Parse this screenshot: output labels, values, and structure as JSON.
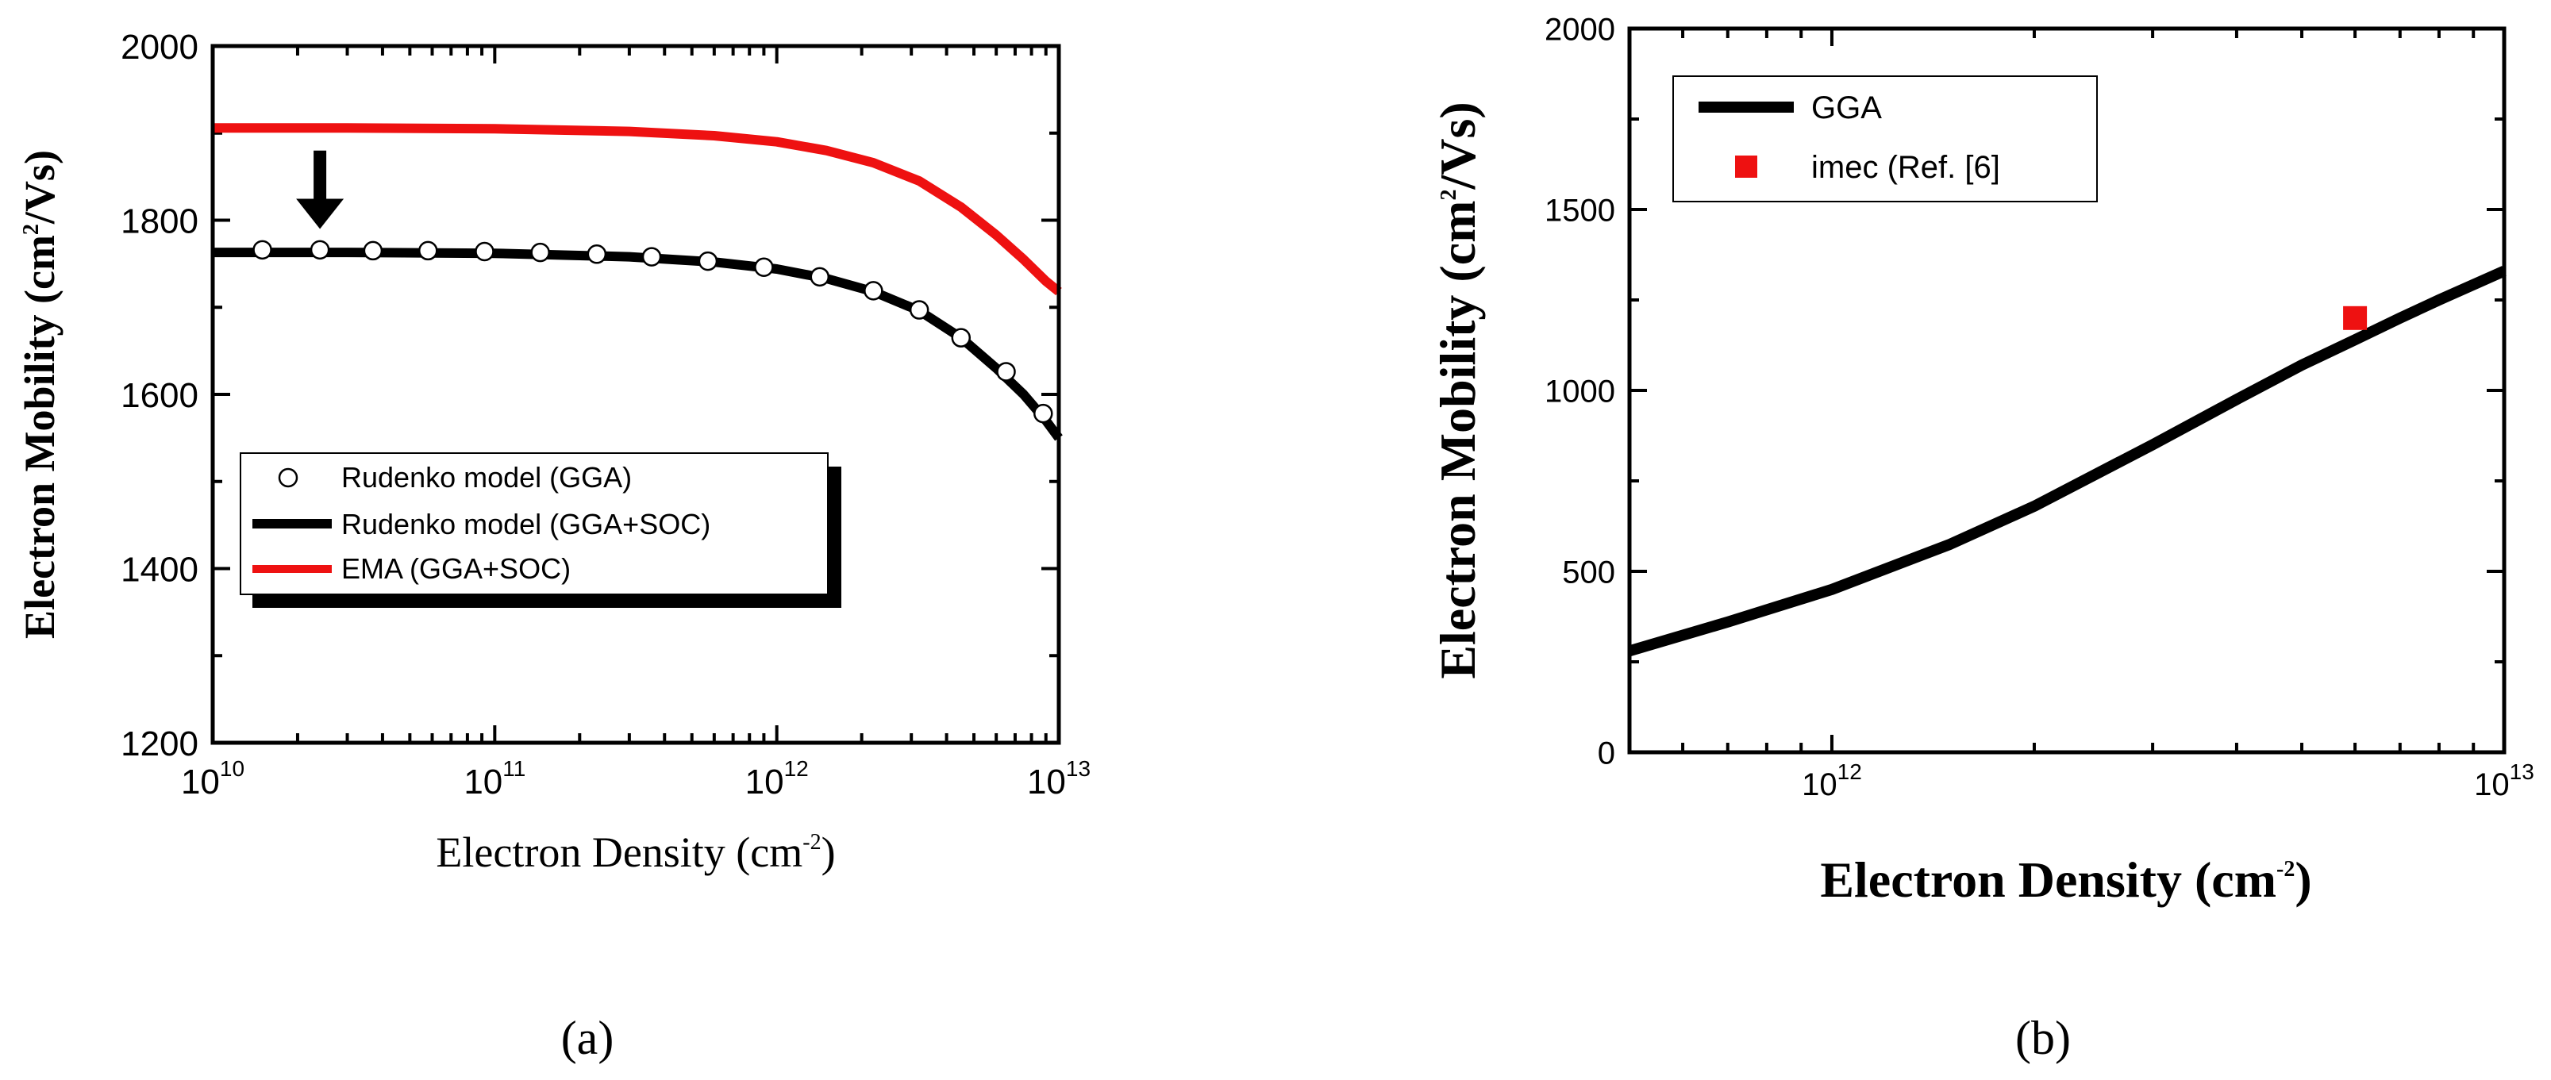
{
  "chart_data": [
    {
      "type": "line",
      "panel_label": "(a)",
      "x_scale": "log",
      "xlim": [
        10000000000.0,
        10000000000000.0
      ],
      "ylim": [
        1200,
        2000
      ],
      "xlabel": "Electron Density (cm",
      "xlabel_sup": "-2",
      "xlabel_end": ")",
      "ylabel": "Electron Mobility (cm",
      "ylabel_sup": "2",
      "ylabel_end": "/Vs)",
      "x_ticks": [
        {
          "base": "10",
          "exp": "10"
        },
        {
          "base": "10",
          "exp": "11"
        },
        {
          "base": "10",
          "exp": "12"
        },
        {
          "base": "10",
          "exp": "13"
        }
      ],
      "y_ticks": [
        "1200",
        "1400",
        "1600",
        "1800",
        "2000"
      ],
      "legend_position": "center-left",
      "series": [
        {
          "name": "Rudenko model (GGA)",
          "style": "open-circle",
          "color": "#000000",
          "x": [
            15000000000.0,
            24000000000.0,
            37000000000.0,
            58000000000.0,
            92000000000.0,
            145000000000.0,
            230000000000.0,
            360000000000.0,
            570000000000.0,
            900000000000.0,
            1420000000000.0,
            2200000000000.0,
            3200000000000.0,
            4500000000000.0,
            6500000000000.0,
            8800000000000.0
          ],
          "values": [
            1766,
            1766,
            1765,
            1765,
            1764,
            1763,
            1761,
            1758,
            1753,
            1746,
            1735,
            1719,
            1697,
            1665,
            1626,
            1578
          ]
        },
        {
          "name": "Rudenko model (GGA+SOC)",
          "style": "line",
          "color": "#000000",
          "x": [
            10000000000.0,
            30000000000.0,
            100000000000.0,
            300000000000.0,
            600000000000.0,
            1000000000000.0,
            1500000000000.0,
            2200000000000.0,
            3200000000000.0,
            4500000000000.0,
            6000000000000.0,
            7500000000000.0,
            9000000000000.0,
            10000000000000.0
          ],
          "values": [
            1763,
            1763,
            1762,
            1758,
            1752,
            1744,
            1733,
            1718,
            1696,
            1665,
            1630,
            1600,
            1570,
            1550
          ]
        },
        {
          "name": "EMA (GGA+SOC)",
          "style": "line",
          "color": "#ee1111",
          "x": [
            10000000000.0,
            30000000000.0,
            100000000000.0,
            300000000000.0,
            600000000000.0,
            1000000000000.0,
            1500000000000.0,
            2200000000000.0,
            3200000000000.0,
            4500000000000.0,
            6000000000000.0,
            7500000000000.0,
            9000000000000.0,
            10000000000000.0
          ],
          "values": [
            1906,
            1906,
            1905,
            1902,
            1897,
            1890,
            1880,
            1866,
            1845,
            1815,
            1783,
            1755,
            1730,
            1718
          ]
        }
      ],
      "annotations": [
        {
          "type": "arrow-down",
          "x": 24000000000.0,
          "y_from": 1880,
          "y_to": 1790
        }
      ]
    },
    {
      "type": "line",
      "panel_label": "(b)",
      "x_scale": "log",
      "xlim": [
        500000000000.0,
        10000000000000.0
      ],
      "ylim": [
        0,
        2000
      ],
      "xlabel": "Electron Density (cm",
      "xlabel_sup": "-2",
      "xlabel_end": ")",
      "ylabel": "Electron Mobility (cm",
      "ylabel_sup": "2",
      "ylabel_end": "/Vs)",
      "x_ticks": [
        {
          "base": "10",
          "exp": "12"
        },
        {
          "base": "10",
          "exp": "13"
        }
      ],
      "y_ticks": [
        "0",
        "500",
        "1000",
        "1500",
        "2000"
      ],
      "legend_position": "top-left",
      "series": [
        {
          "name": "GGA",
          "style": "line",
          "color": "#000000",
          "x": [
            500000000000.0,
            700000000000.0,
            1000000000000.0,
            1500000000000.0,
            2000000000000.0,
            3000000000000.0,
            4000000000000.0,
            5000000000000.0,
            6000000000000.0,
            7000000000000.0,
            8000000000000.0,
            10000000000000.0
          ],
          "values": [
            280,
            360,
            450,
            575,
            680,
            850,
            975,
            1070,
            1140,
            1200,
            1250,
            1330
          ]
        },
        {
          "name": "imec (Ref. [6]",
          "style": "square",
          "color": "#ee1111",
          "x": [
            6000000000000.0
          ],
          "values": [
            1200
          ]
        }
      ]
    }
  ]
}
